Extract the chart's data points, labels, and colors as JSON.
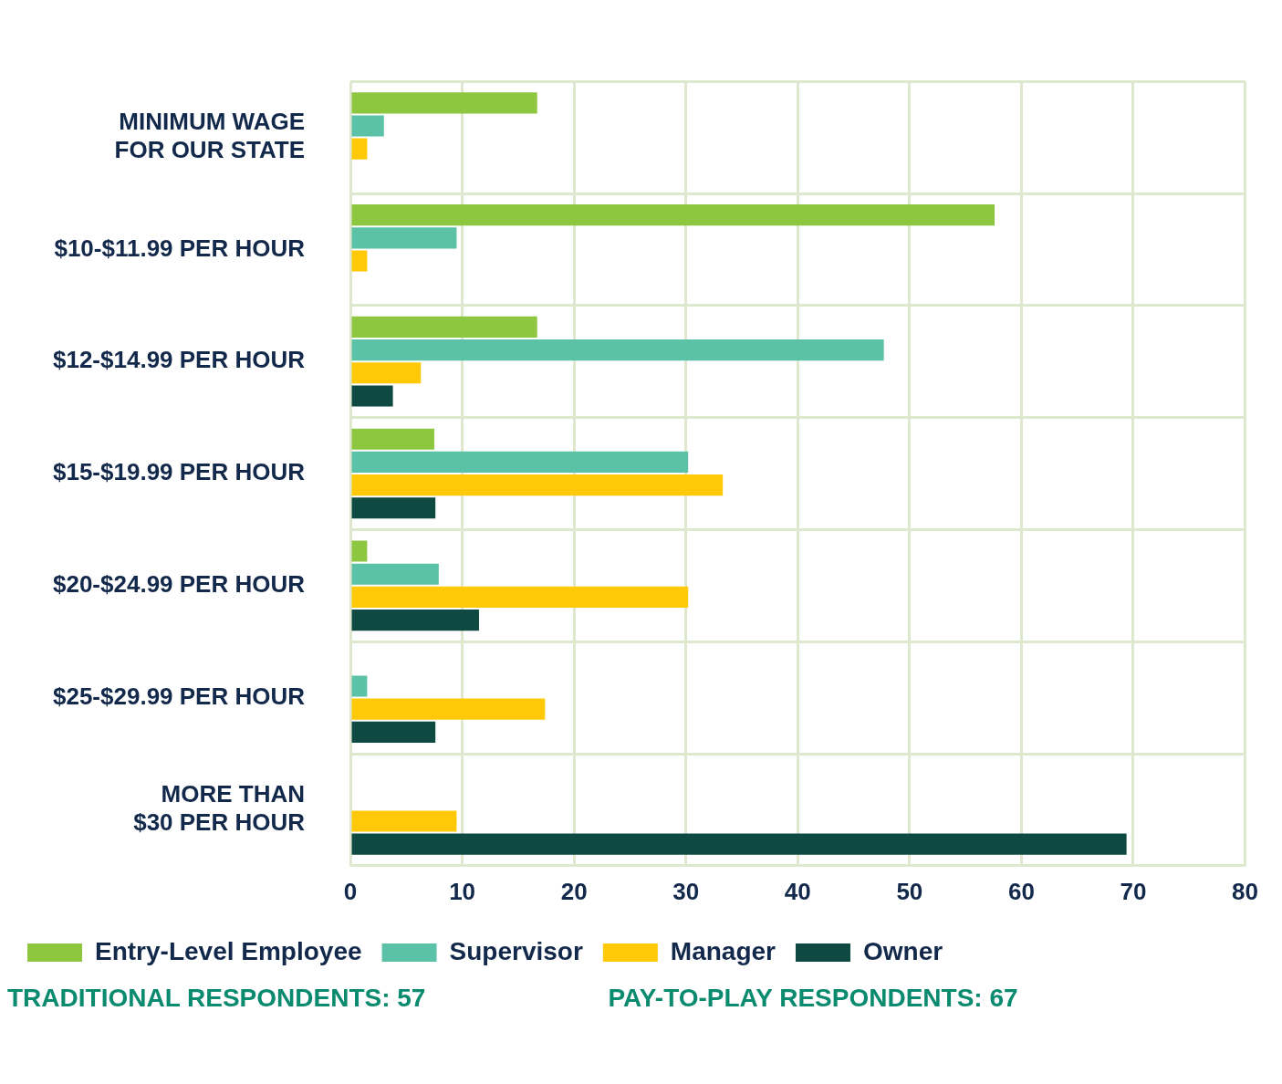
{
  "chart_data": {
    "type": "bar",
    "orientation": "horizontal",
    "categories": [
      "MINIMUM WAGE FOR OUR STATE",
      "$10-$11.99 PER HOUR",
      "$12-$14.99 PER HOUR",
      "$15-$19.99 PER HOUR",
      "$20-$24.99 PER HOUR",
      "$25-$29.99 PER HOUR",
      "MORE THAN $30 PER HOUR"
    ],
    "series": [
      {
        "name": "Entry-Level Employee",
        "color": "#8dc63f",
        "values": [
          16.7,
          57.6,
          16.7,
          7.5,
          1.5,
          0,
          0
        ]
      },
      {
        "name": "Supervisor",
        "color": "#5bc2a7",
        "values": [
          3,
          9.5,
          47.7,
          30.2,
          7.9,
          1.5,
          0
        ]
      },
      {
        "name": "Manager",
        "color": "#ffc907",
        "values": [
          1.5,
          1.5,
          6.3,
          33.3,
          30.2,
          17.4,
          9.5
        ]
      },
      {
        "name": "Owner",
        "color": "#0f4a42",
        "values": [
          0,
          0,
          3.8,
          7.6,
          11.5,
          7.6,
          69.4
        ]
      }
    ],
    "xlim": [
      0,
      80
    ],
    "xticks": [
      0,
      10,
      20,
      30,
      40,
      50,
      60,
      70,
      80
    ],
    "grid": true,
    "legend": "bottom",
    "annotations": [
      "TRADITIONAL RESPONDENTS: 57",
      "PAY-TO-PLAY RESPONDENTS: 67"
    ]
  }
}
